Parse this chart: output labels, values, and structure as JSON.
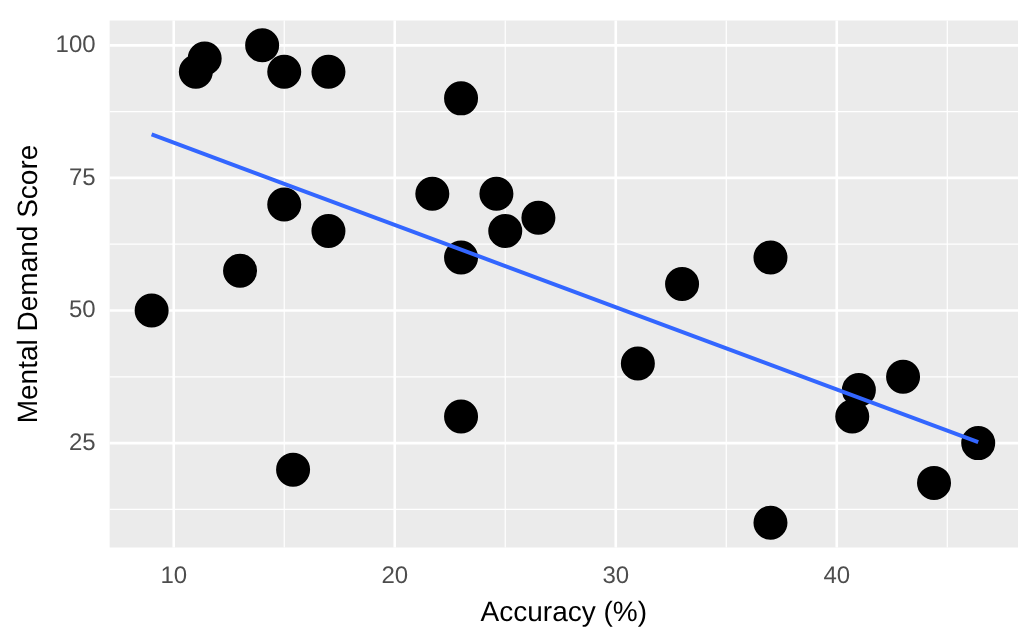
{
  "chart_data": {
    "type": "scatter",
    "xlabel": "Accuracy (%)",
    "ylabel": "Mental Demand Score",
    "xlim": [
      7.1,
      48.2
    ],
    "ylim": [
      5.3,
      104.7
    ],
    "xticks": [
      10,
      20,
      30,
      40
    ],
    "yticks": [
      25,
      50,
      75,
      100
    ],
    "grid": true,
    "legend": false,
    "series": [
      {
        "marker": "circle",
        "color": "#000000",
        "x": [
          9,
          11,
          11.4,
          14,
          15,
          17,
          15,
          13,
          15.4,
          17,
          21.7,
          23,
          23,
          23,
          24.6,
          25,
          26.5,
          31,
          33,
          37,
          37,
          40.7,
          41,
          43,
          44.4,
          46.4
        ],
        "values": [
          50,
          95,
          97.5,
          100,
          95,
          95,
          70,
          57.5,
          20,
          65,
          72,
          90,
          60,
          30,
          72,
          65,
          67.5,
          40,
          55,
          60,
          10,
          30,
          35,
          37.5,
          17.5,
          25
        ]
      },
      {
        "type": "line",
        "color": "#3366ff",
        "x": [
          9,
          46.4
        ],
        "values": [
          83.2,
          25.2
        ]
      }
    ]
  }
}
